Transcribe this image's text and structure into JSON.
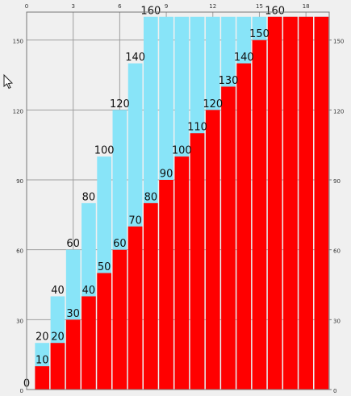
{
  "chart_data": {
    "type": "bar",
    "x": [
      0,
      1,
      2,
      3,
      4,
      5,
      6,
      7,
      8,
      9,
      10,
      11,
      12,
      13,
      14,
      15,
      16,
      17,
      18,
      19
    ],
    "series": [
      {
        "color": "#88e4f8",
        "values": [
          0,
          20,
          40,
          60,
          80,
          100,
          120,
          140,
          160,
          160,
          160,
          160,
          160,
          160,
          160,
          160,
          160,
          160,
          160,
          160
        ],
        "value_labels": [
          null,
          "20",
          "40",
          "60",
          "80",
          "100",
          "120",
          "140",
          "160",
          null,
          null,
          null,
          null,
          null,
          null,
          null,
          null,
          null,
          null,
          null
        ]
      },
      {
        "color": "#ff0000",
        "values": [
          0,
          10,
          20,
          30,
          40,
          50,
          60,
          70,
          80,
          90,
          100,
          110,
          120,
          130,
          140,
          150,
          160,
          160,
          160,
          160
        ],
        "value_labels": [
          "0",
          "10",
          "20",
          "30",
          "40",
          "50",
          "60",
          "70",
          "80",
          "90",
          "100",
          "110",
          "120",
          "130",
          "140",
          "150",
          "160",
          null,
          null,
          null
        ]
      }
    ],
    "xlim": [
      0,
      19.5
    ],
    "xticks": [
      0,
      3,
      6,
      9,
      12,
      15,
      18
    ],
    "ylim": [
      0,
      162
    ],
    "yticks": [
      0,
      30,
      60,
      90,
      120,
      150
    ],
    "y2lim": [
      0,
      162
    ],
    "y2ticks": [
      0,
      30,
      60,
      90,
      120,
      150
    ],
    "grid": true
  }
}
